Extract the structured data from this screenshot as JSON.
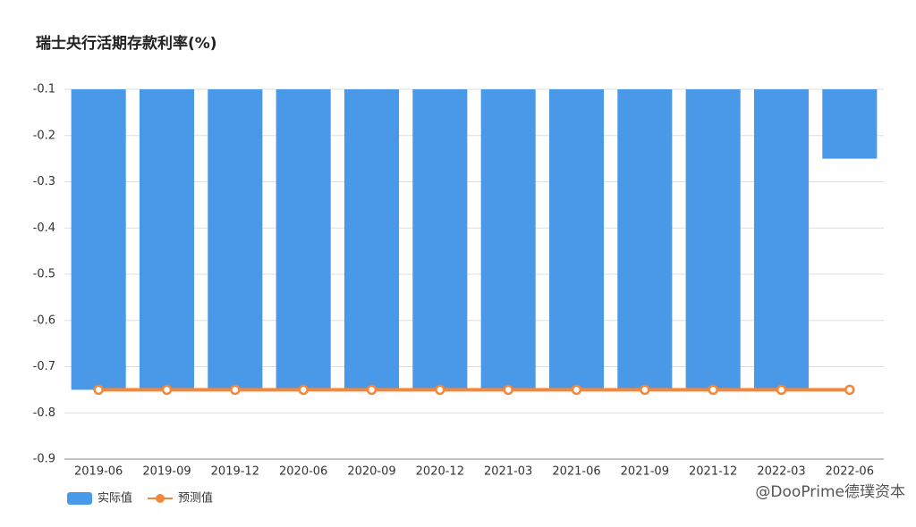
{
  "chart_data": {
    "type": "bar",
    "title": "瑞士央行活期存款利率(%)",
    "categories": [
      "2019-06",
      "2019-09",
      "2019-12",
      "2020-06",
      "2020-09",
      "2020-12",
      "2021-03",
      "2021-06",
      "2021-09",
      "2021-12",
      "2022-03",
      "2022-06"
    ],
    "series": [
      {
        "name": "实际值",
        "type": "bar",
        "color": "#4a98e8",
        "values": [
          -0.75,
          -0.75,
          -0.75,
          -0.75,
          -0.75,
          -0.75,
          -0.75,
          -0.75,
          -0.75,
          -0.75,
          -0.75,
          -0.25
        ]
      },
      {
        "name": "预测值",
        "type": "line",
        "color": "#f5873a",
        "values": [
          -0.75,
          -0.75,
          -0.75,
          -0.75,
          -0.75,
          -0.75,
          -0.75,
          -0.75,
          -0.75,
          -0.75,
          -0.75,
          -0.75
        ]
      }
    ],
    "ylim": [
      -0.9,
      -0.1
    ],
    "yticks": [
      -0.9,
      -0.8,
      -0.7,
      -0.6,
      -0.5,
      -0.4,
      -0.3,
      -0.2,
      -0.1
    ],
    "grid": true,
    "legend": "bottom-left",
    "watermark": "@DooPrime德璞资本"
  }
}
